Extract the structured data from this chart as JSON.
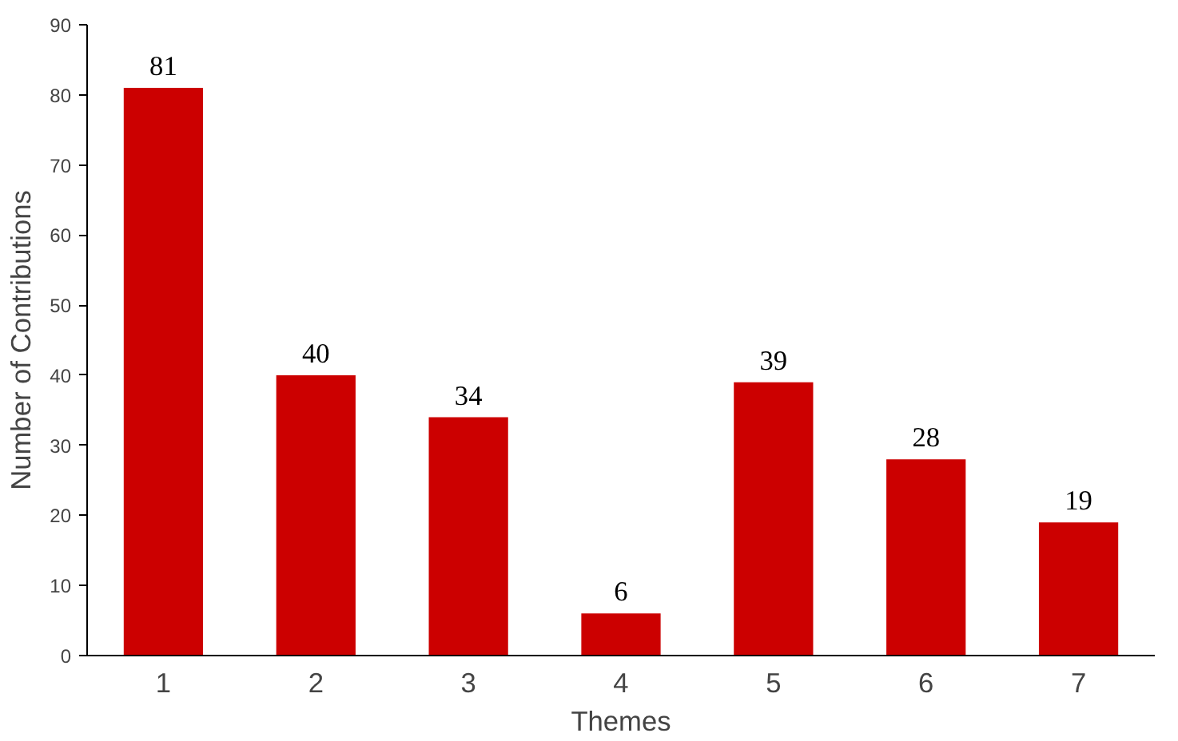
{
  "chart_data": {
    "type": "bar",
    "xlabel": "Themes",
    "ylabel": "Number of Contributions",
    "categories": [
      "1",
      "2",
      "3",
      "4",
      "5",
      "6",
      "7"
    ],
    "values": [
      81,
      40,
      34,
      6,
      39,
      28,
      19
    ],
    "color": "#cc0000",
    "ylim": [
      0,
      90
    ],
    "yticks": [
      0,
      10,
      20,
      30,
      40,
      50,
      60,
      70,
      80,
      90
    ],
    "grid": false,
    "data_labels": true
  }
}
